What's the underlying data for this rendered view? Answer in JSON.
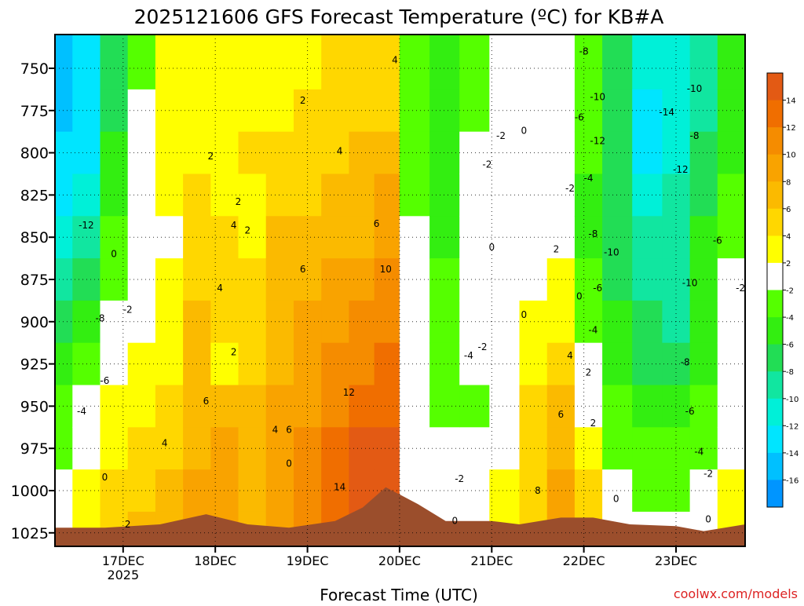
{
  "chart_data": {
    "type": "heatmap",
    "title": "2025121606 GFS Forecast Temperature (ºC) for KB#A",
    "xlabel": "Forecast Time (UTC)",
    "ylabel": "",
    "watermark": "coolwx.com/models",
    "y_axis": {
      "orientation": "inverted",
      "ticks": [
        750,
        775,
        800,
        825,
        850,
        875,
        900,
        925,
        950,
        975,
        1000,
        1025
      ],
      "range": [
        730,
        1033
      ]
    },
    "x_axis": {
      "ticks": [
        "17DEC",
        "18DEC",
        "19DEC",
        "20DEC",
        "21DEC",
        "22DEC",
        "23DEC"
      ],
      "tick_values": [
        1,
        2,
        3,
        4,
        5,
        6,
        7
      ],
      "year_label": "2025",
      "range": [
        0.26,
        7.75
      ]
    },
    "grid": true,
    "colorbar": {
      "tick_labels": [
        "14",
        "12",
        "10",
        "8",
        "6",
        "4",
        "2",
        "-2",
        "-4",
        "-6",
        "-8",
        "-10",
        "-12",
        "-14",
        "-16"
      ],
      "bins": [
        {
          "range": [
            14,
            16
          ],
          "color": "#e35a14"
        },
        {
          "range": [
            12,
            14
          ],
          "color": "#f06e00"
        },
        {
          "range": [
            10,
            12
          ],
          "color": "#f58c00"
        },
        {
          "range": [
            8,
            10
          ],
          "color": "#f9a300"
        },
        {
          "range": [
            6,
            8
          ],
          "color": "#fbba00"
        },
        {
          "range": [
            4,
            6
          ],
          "color": "#ffd700"
        },
        {
          "range": [
            2,
            4
          ],
          "color": "#ffff00"
        },
        {
          "range": [
            -2,
            2
          ],
          "color": "#ffffff"
        },
        {
          "range": [
            -4,
            -2
          ],
          "color": "#55ff00"
        },
        {
          "range": [
            -6,
            -4
          ],
          "color": "#33ee11"
        },
        {
          "range": [
            -8,
            -6
          ],
          "color": "#22dd55"
        },
        {
          "range": [
            -10,
            -8
          ],
          "color": "#11e6a0"
        },
        {
          "range": [
            -12,
            -10
          ],
          "color": "#00f0d8"
        },
        {
          "range": [
            -14,
            -12
          ],
          "color": "#00e5ff"
        },
        {
          "range": [
            -16,
            -14
          ],
          "color": "#00c0ff"
        },
        {
          "range": [
            -18,
            -16
          ],
          "color": "#0095ff"
        }
      ]
    },
    "terrain_color": "#9b4e2c",
    "freezing_line_color": "#c0157a",
    "series": [
      {
        "x": 0.3,
        "temps": [
          -16,
          -16,
          -14,
          -14,
          -12,
          -10,
          -8,
          -6,
          -4,
          -4,
          -2,
          0
        ]
      },
      {
        "x": 0.6,
        "temps": [
          -14,
          -14,
          -14,
          -12,
          -10,
          -8,
          -6,
          -4,
          -2,
          0,
          2,
          2
        ]
      },
      {
        "x": 0.9,
        "temps": [
          -8,
          -8,
          -6,
          -6,
          -4,
          -4,
          -2,
          0,
          2,
          2,
          4,
          4
        ]
      },
      {
        "x": 1.2,
        "temps": [
          -4,
          -2,
          0,
          0,
          -2,
          -2,
          0,
          2,
          2,
          4,
          4,
          6
        ]
      },
      {
        "x": 1.5,
        "temps": [
          2,
          2,
          2,
          2,
          0,
          2,
          2,
          2,
          4,
          4,
          6,
          6
        ]
      },
      {
        "x": 1.8,
        "temps": [
          2,
          2,
          2,
          4,
          4,
          4,
          6,
          6,
          6,
          6,
          8,
          8
        ]
      },
      {
        "x": 2.1,
        "temps": [
          2,
          2,
          2,
          2,
          4,
          4,
          4,
          2,
          6,
          8,
          8,
          8
        ]
      },
      {
        "x": 2.4,
        "temps": [
          2,
          2,
          4,
          2,
          2,
          4,
          4,
          4,
          6,
          6,
          6,
          6
        ]
      },
      {
        "x": 2.7,
        "temps": [
          2,
          2,
          4,
          4,
          6,
          6,
          6,
          6,
          8,
          8,
          8,
          8
        ]
      },
      {
        "x": 3.0,
        "temps": [
          2,
          4,
          4,
          4,
          6,
          6,
          8,
          8,
          8,
          10,
          10,
          10
        ]
      },
      {
        "x": 3.3,
        "temps": [
          4,
          4,
          4,
          6,
          6,
          8,
          8,
          10,
          10,
          12,
          12,
          12
        ]
      },
      {
        "x": 3.6,
        "temps": [
          4,
          4,
          6,
          6,
          6,
          8,
          10,
          10,
          12,
          14,
          14,
          14
        ]
      },
      {
        "x": 3.85,
        "temps": [
          4,
          4,
          6,
          8,
          8,
          10,
          10,
          12,
          12,
          14,
          14,
          14
        ]
      },
      {
        "x": 4.15,
        "temps": [
          -4,
          -4,
          -4,
          -4,
          -2,
          -2,
          -2,
          -2,
          0,
          0,
          0,
          0
        ]
      },
      {
        "x": 4.5,
        "temps": [
          -6,
          -6,
          -6,
          -6,
          -6,
          -4,
          -4,
          -4,
          -4,
          -2,
          -2,
          -2
        ]
      },
      {
        "x": 4.8,
        "temps": [
          -4,
          -4,
          -2,
          -2,
          -2,
          -2,
          -2,
          -2,
          -4,
          -2,
          -2,
          0
        ]
      },
      {
        "x": 5.15,
        "temps": [
          0,
          0,
          0,
          0,
          0,
          0,
          0,
          0,
          0,
          0,
          2,
          2
        ]
      },
      {
        "x": 5.45,
        "temps": [
          0,
          0,
          0,
          0,
          0,
          0,
          2,
          2,
          4,
          4,
          4,
          4
        ]
      },
      {
        "x": 5.75,
        "temps": [
          -2,
          -2,
          -2,
          -2,
          0,
          2,
          2,
          4,
          6,
          6,
          8,
          8
        ]
      },
      {
        "x": 6.05,
        "temps": [
          -4,
          -4,
          -4,
          -6,
          -6,
          -4,
          -4,
          -2,
          0,
          2,
          4,
          4
        ]
      },
      {
        "x": 6.35,
        "temps": [
          -8,
          -8,
          -8,
          -8,
          -8,
          -8,
          -6,
          -6,
          -4,
          -4,
          -2,
          0
        ]
      },
      {
        "x": 6.7,
        "temps": [
          -12,
          -14,
          -14,
          -12,
          -10,
          -10,
          -8,
          -8,
          -6,
          -4,
          -4,
          -2
        ]
      },
      {
        "x": 7.0,
        "temps": [
          -12,
          -12,
          -12,
          -10,
          -10,
          -10,
          -10,
          -8,
          -6,
          -4,
          -4,
          -2
        ]
      },
      {
        "x": 7.3,
        "temps": [
          -10,
          -10,
          -8,
          -8,
          -6,
          -6,
          -6,
          -6,
          -4,
          -4,
          -2,
          0
        ]
      },
      {
        "x": 7.6,
        "temps": [
          -6,
          -6,
          -6,
          -4,
          -4,
          -2,
          -2,
          -2,
          -2,
          0,
          2,
          2
        ]
      }
    ],
    "contour_labels": [
      {
        "x": 0.6,
        "p": 843,
        "text": "-12"
      },
      {
        "x": 0.9,
        "p": 860,
        "text": "0"
      },
      {
        "x": 0.75,
        "p": 898,
        "text": "-8"
      },
      {
        "x": 0.8,
        "p": 935,
        "text": "-6"
      },
      {
        "x": 0.55,
        "p": 953,
        "text": "-4"
      },
      {
        "x": 1.05,
        "p": 893,
        "text": "-2"
      },
      {
        "x": 0.8,
        "p": 992,
        "text": "0"
      },
      {
        "x": 1.05,
        "p": 1020,
        "text": "2"
      },
      {
        "x": 1.45,
        "p": 972,
        "text": "4"
      },
      {
        "x": 1.9,
        "p": 947,
        "text": "6"
      },
      {
        "x": 1.95,
        "p": 802,
        "text": "2"
      },
      {
        "x": 2.25,
        "p": 829,
        "text": "2"
      },
      {
        "x": 2.2,
        "p": 843,
        "text": "4"
      },
      {
        "x": 2.35,
        "p": 846,
        "text": "2"
      },
      {
        "x": 2.05,
        "p": 880,
        "text": "4"
      },
      {
        "x": 2.2,
        "p": 918,
        "text": "2"
      },
      {
        "x": 2.95,
        "p": 769,
        "text": "2"
      },
      {
        "x": 3.95,
        "p": 745,
        "text": "4"
      },
      {
        "x": 3.35,
        "p": 799,
        "text": "4"
      },
      {
        "x": 3.75,
        "p": 842,
        "text": "6"
      },
      {
        "x": 2.95,
        "p": 869,
        "text": "6"
      },
      {
        "x": 3.85,
        "p": 869,
        "text": "10"
      },
      {
        "x": 3.45,
        "p": 942,
        "text": "12"
      },
      {
        "x": 3.35,
        "p": 998,
        "text": "14"
      },
      {
        "x": 2.65,
        "p": 964,
        "text": "4"
      },
      {
        "x": 2.8,
        "p": 964,
        "text": "6"
      },
      {
        "x": 2.8,
        "p": 984,
        "text": "0"
      },
      {
        "x": 5.1,
        "p": 790,
        "text": "-2"
      },
      {
        "x": 4.95,
        "p": 807,
        "text": "-2"
      },
      {
        "x": 5.35,
        "p": 787,
        "text": "0"
      },
      {
        "x": 5.0,
        "p": 856,
        "text": "0"
      },
      {
        "x": 5.35,
        "p": 896,
        "text": "0"
      },
      {
        "x": 4.9,
        "p": 915,
        "text": "-2"
      },
      {
        "x": 4.75,
        "p": 920,
        "text": "-4"
      },
      {
        "x": 4.65,
        "p": 993,
        "text": "-2"
      },
      {
        "x": 4.6,
        "p": 1018,
        "text": "0"
      },
      {
        "x": 6.0,
        "p": 740,
        "text": "-8"
      },
      {
        "x": 6.15,
        "p": 767,
        "text": "-10"
      },
      {
        "x": 5.95,
        "p": 779,
        "text": "-6"
      },
      {
        "x": 6.15,
        "p": 793,
        "text": "-12"
      },
      {
        "x": 6.05,
        "p": 815,
        "text": "-4"
      },
      {
        "x": 5.85,
        "p": 821,
        "text": "-2"
      },
      {
        "x": 6.1,
        "p": 848,
        "text": "-8"
      },
      {
        "x": 6.3,
        "p": 859,
        "text": "-10"
      },
      {
        "x": 6.15,
        "p": 880,
        "text": "-6"
      },
      {
        "x": 5.95,
        "p": 885,
        "text": "0"
      },
      {
        "x": 5.7,
        "p": 857,
        "text": "2"
      },
      {
        "x": 6.1,
        "p": 905,
        "text": "-4"
      },
      {
        "x": 6.05,
        "p": 930,
        "text": "2"
      },
      {
        "x": 5.85,
        "p": 920,
        "text": "4"
      },
      {
        "x": 5.75,
        "p": 955,
        "text": "6"
      },
      {
        "x": 6.1,
        "p": 960,
        "text": "2"
      },
      {
        "x": 5.5,
        "p": 1000,
        "text": "8"
      },
      {
        "x": 6.35,
        "p": 1005,
        "text": "0"
      },
      {
        "x": 6.9,
        "p": 776,
        "text": "-14"
      },
      {
        "x": 7.2,
        "p": 762,
        "text": "-10"
      },
      {
        "x": 7.2,
        "p": 790,
        "text": "-8"
      },
      {
        "x": 7.05,
        "p": 810,
        "text": "-12"
      },
      {
        "x": 7.45,
        "p": 852,
        "text": "-6"
      },
      {
        "x": 7.15,
        "p": 877,
        "text": "-10"
      },
      {
        "x": 7.1,
        "p": 924,
        "text": "-8"
      },
      {
        "x": 7.15,
        "p": 953,
        "text": "-6"
      },
      {
        "x": 7.25,
        "p": 977,
        "text": "-4"
      },
      {
        "x": 7.35,
        "p": 990,
        "text": "-2"
      },
      {
        "x": 7.35,
        "p": 1017,
        "text": "0"
      },
      {
        "x": 7.7,
        "p": 880,
        "text": "-2"
      }
    ]
  }
}
